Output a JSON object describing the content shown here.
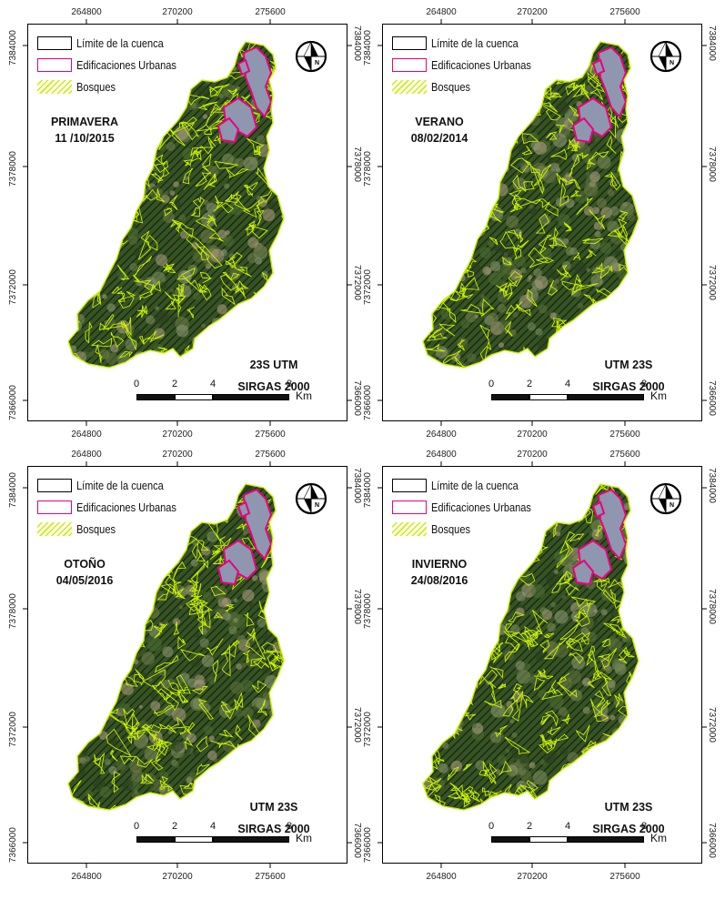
{
  "panels": [
    {
      "season": "PRIMAVERA",
      "date": "11 /10/2015",
      "crs_line1": "23S  UTM",
      "crs_line2": "SIRGAS 2000"
    },
    {
      "season": "VERANO",
      "date": "08/02/2014",
      "crs_line1": "UTM   23S",
      "crs_line2": "SIRGAS 2000"
    },
    {
      "season": "OTOÑO",
      "date": "04/05/2016",
      "crs_line1": "UTM   23S",
      "crs_line2": "SIRGAS 2000"
    },
    {
      "season": "INVIERNO",
      "date": "24/08/2016",
      "crs_line1": "UTM   23S",
      "crs_line2": "SIRGAS 2000"
    }
  ],
  "legend": {
    "basin": "Límite de la cuenca",
    "urban": "Edificaciones Urbanas",
    "forest": "Bosques"
  },
  "grid": {
    "x_ticks": [
      "264800",
      "270200",
      "275600"
    ],
    "y_ticks": [
      "7384000",
      "7378000",
      "7372000",
      "7366000"
    ]
  },
  "scale": {
    "labels": [
      "0",
      "2",
      "4",
      "8"
    ],
    "unit": "Km"
  },
  "north_arrow": {
    "label": "N",
    "icon": "north-arrow-icon"
  },
  "colors": {
    "forest_outline": "#c8f000",
    "urban": "#e8007f",
    "basin": "#000000",
    "vegetation": "#2f4a22",
    "urban_fill": "#8f96b0"
  }
}
